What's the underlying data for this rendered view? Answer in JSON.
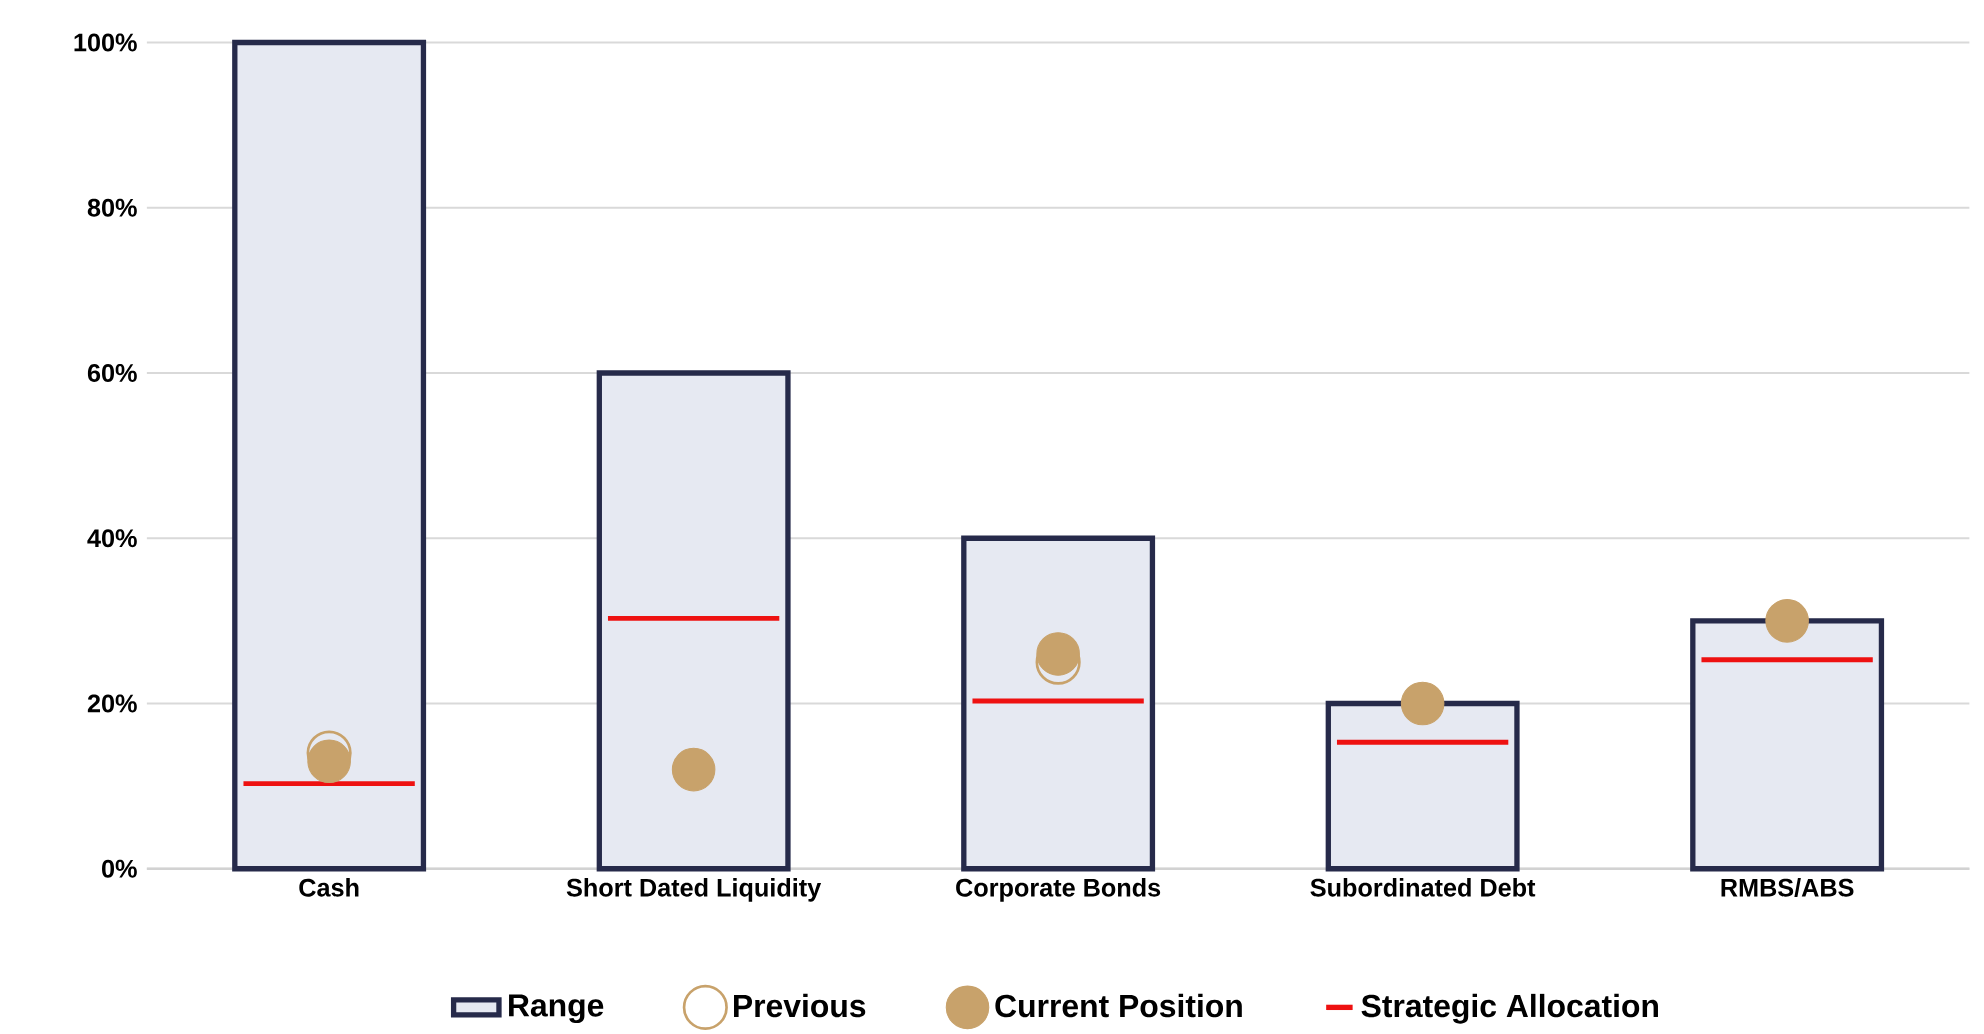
{
  "chart_data": {
    "type": "bar",
    "categories": [
      "Cash",
      "Short Dated Liquidity",
      "Corporate Bonds",
      "Subordinated Debt",
      "RMBS/ABS"
    ],
    "series": [
      {
        "name": "Range",
        "color": "#e6e9f2",
        "values": [
          100,
          60,
          40,
          20,
          30
        ]
      },
      {
        "name": "Previous",
        "type": "scatter",
        "marker": "open circle",
        "color": "#c8a26b",
        "values": [
          14,
          null,
          25,
          null,
          null
        ]
      },
      {
        "name": "Current Position",
        "type": "scatter",
        "marker": "circle",
        "color": "#c8a26b",
        "values": [
          13,
          12,
          26,
          20,
          30
        ]
      },
      {
        "name": "Strategic Allocation",
        "type": "bar",
        "color": "#ee1111",
        "base": [
          10,
          30,
          20,
          15,
          25
        ],
        "values": [
          0.6,
          0.6,
          0.6,
          0.6,
          0.6
        ]
      }
    ],
    "ylim": [
      0,
      100
    ],
    "yticks": [
      {
        "value": 0,
        "label": "0%"
      },
      {
        "value": 20,
        "label": "20%"
      },
      {
        "value": 40,
        "label": "40%"
      },
      {
        "value": 60,
        "label": "60%"
      },
      {
        "value": 80,
        "label": "80%"
      },
      {
        "value": 100,
        "label": "100%"
      }
    ],
    "grid": "y",
    "legend": "bottom"
  }
}
